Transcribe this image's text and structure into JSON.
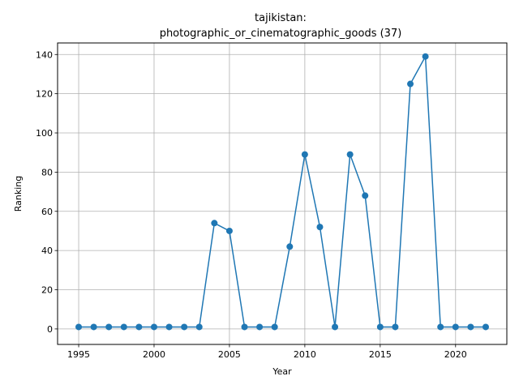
{
  "chart_data": {
    "type": "line",
    "title_line1": "tajikistan:",
    "title_line2": "photographic_or_cinematographic_goods (37)",
    "xlabel": "Year",
    "ylabel": "Ranking",
    "xlim": [
      1993.6,
      2023.4
    ],
    "ylim": [
      -7.9,
      145.9
    ],
    "xticks": [
      1995,
      2000,
      2005,
      2010,
      2015,
      2020
    ],
    "yticks": [
      0,
      20,
      40,
      60,
      80,
      100,
      120,
      140
    ],
    "grid": true,
    "color": "#1f77b4",
    "series": [
      {
        "x": [
          1995,
          1996,
          1997,
          1998,
          1999,
          2000,
          2001,
          2002,
          2003,
          2004,
          2005,
          2006,
          2007,
          2008,
          2009,
          2010,
          2011,
          2012,
          2013,
          2014,
          2015,
          2016,
          2017,
          2018,
          2019,
          2020,
          2021,
          2022
        ],
        "values": [
          1,
          1,
          1,
          1,
          1,
          1,
          1,
          1,
          1,
          54,
          50,
          1,
          1,
          1,
          42,
          89,
          52,
          1,
          89,
          68,
          1,
          1,
          125,
          139,
          1,
          1,
          1,
          1
        ]
      }
    ]
  }
}
